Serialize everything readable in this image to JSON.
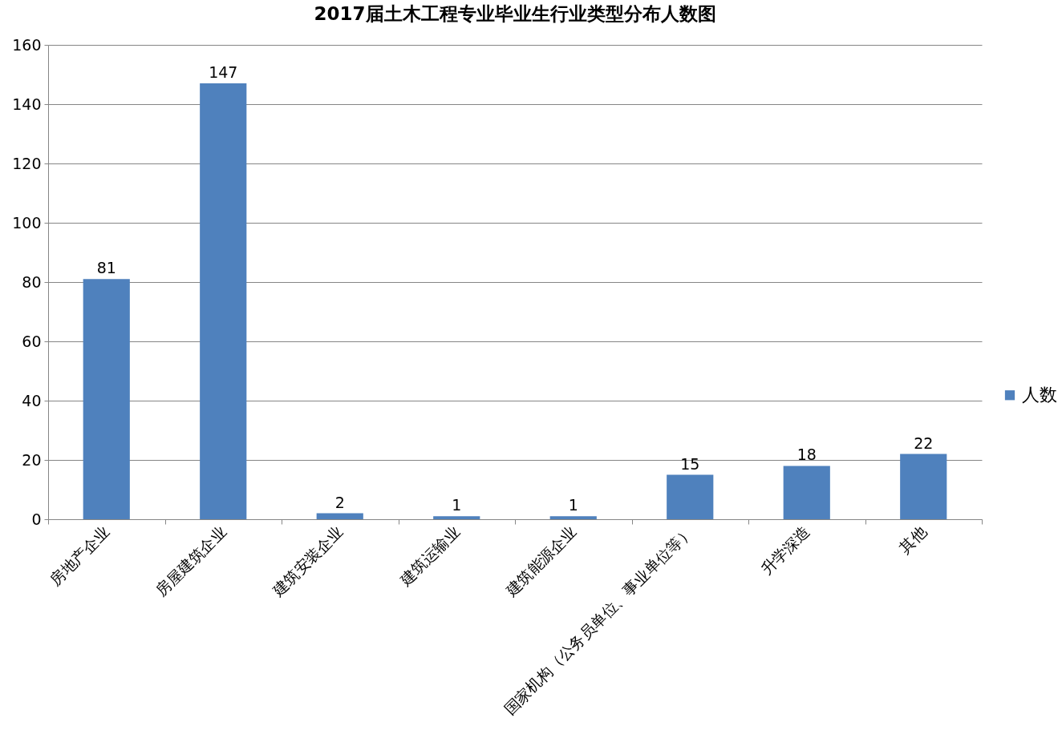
{
  "chart_data": {
    "type": "bar",
    "title": "2017届土木工程专业毕业生行业类型分布人数图",
    "categories": [
      "房地产企业",
      "房屋建筑企业",
      "建筑安装企业",
      "建筑运输业",
      "建筑能源企业",
      "国家机构（公务员单位、事业单位等）",
      "升学深造",
      "其他"
    ],
    "series": [
      {
        "name": "人数",
        "color": "#4f81bd",
        "values": [
          81,
          147,
          2,
          1,
          1,
          15,
          18,
          22
        ]
      }
    ],
    "ylim": [
      0,
      160
    ],
    "yticks": [
      0,
      20,
      40,
      60,
      80,
      100,
      120,
      140,
      160
    ],
    "grid": "y",
    "legend": "right",
    "data_labels": true
  }
}
